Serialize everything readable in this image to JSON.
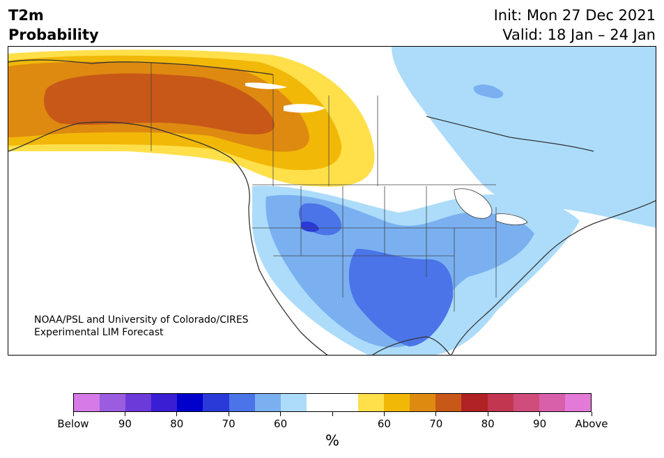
{
  "header": {
    "title_line1": "T2m",
    "title_line2": "Probability",
    "init_label": "Init: Mon 27 Dec 2021",
    "valid_label": "Valid: 18 Jan – 24 Jan"
  },
  "map": {
    "credit_line1": "NOAA/PSL and University of Colorado/CIRES",
    "credit_line2": "Experimental LIM Forecast"
  },
  "colorbar": {
    "unit": "%",
    "colors": [
      "#d67ae8",
      "#9b5de0",
      "#6b3ad8",
      "#3a1ed4",
      "#0000cc",
      "#2a3ad8",
      "#4a74e8",
      "#7ab0f0",
      "#acdcfa",
      "#ffffff",
      "#ffffff",
      "#ffe04a",
      "#f2b808",
      "#de8a10",
      "#c85818",
      "#b02224",
      "#c23650",
      "#d04c7a",
      "#d860aa",
      "#e47ad8"
    ],
    "labels": [
      "Below",
      "90",
      "80",
      "70",
      "60",
      "",
      "60",
      "70",
      "80",
      "90",
      "Above"
    ]
  },
  "legend_colors": {
    "below_shades": [
      "#acdcfa",
      "#7ab0f0",
      "#4a74e8",
      "#2a3ad8"
    ],
    "above_shades": [
      "#ffe04a",
      "#f2b808",
      "#de8a10",
      "#c85818"
    ]
  }
}
